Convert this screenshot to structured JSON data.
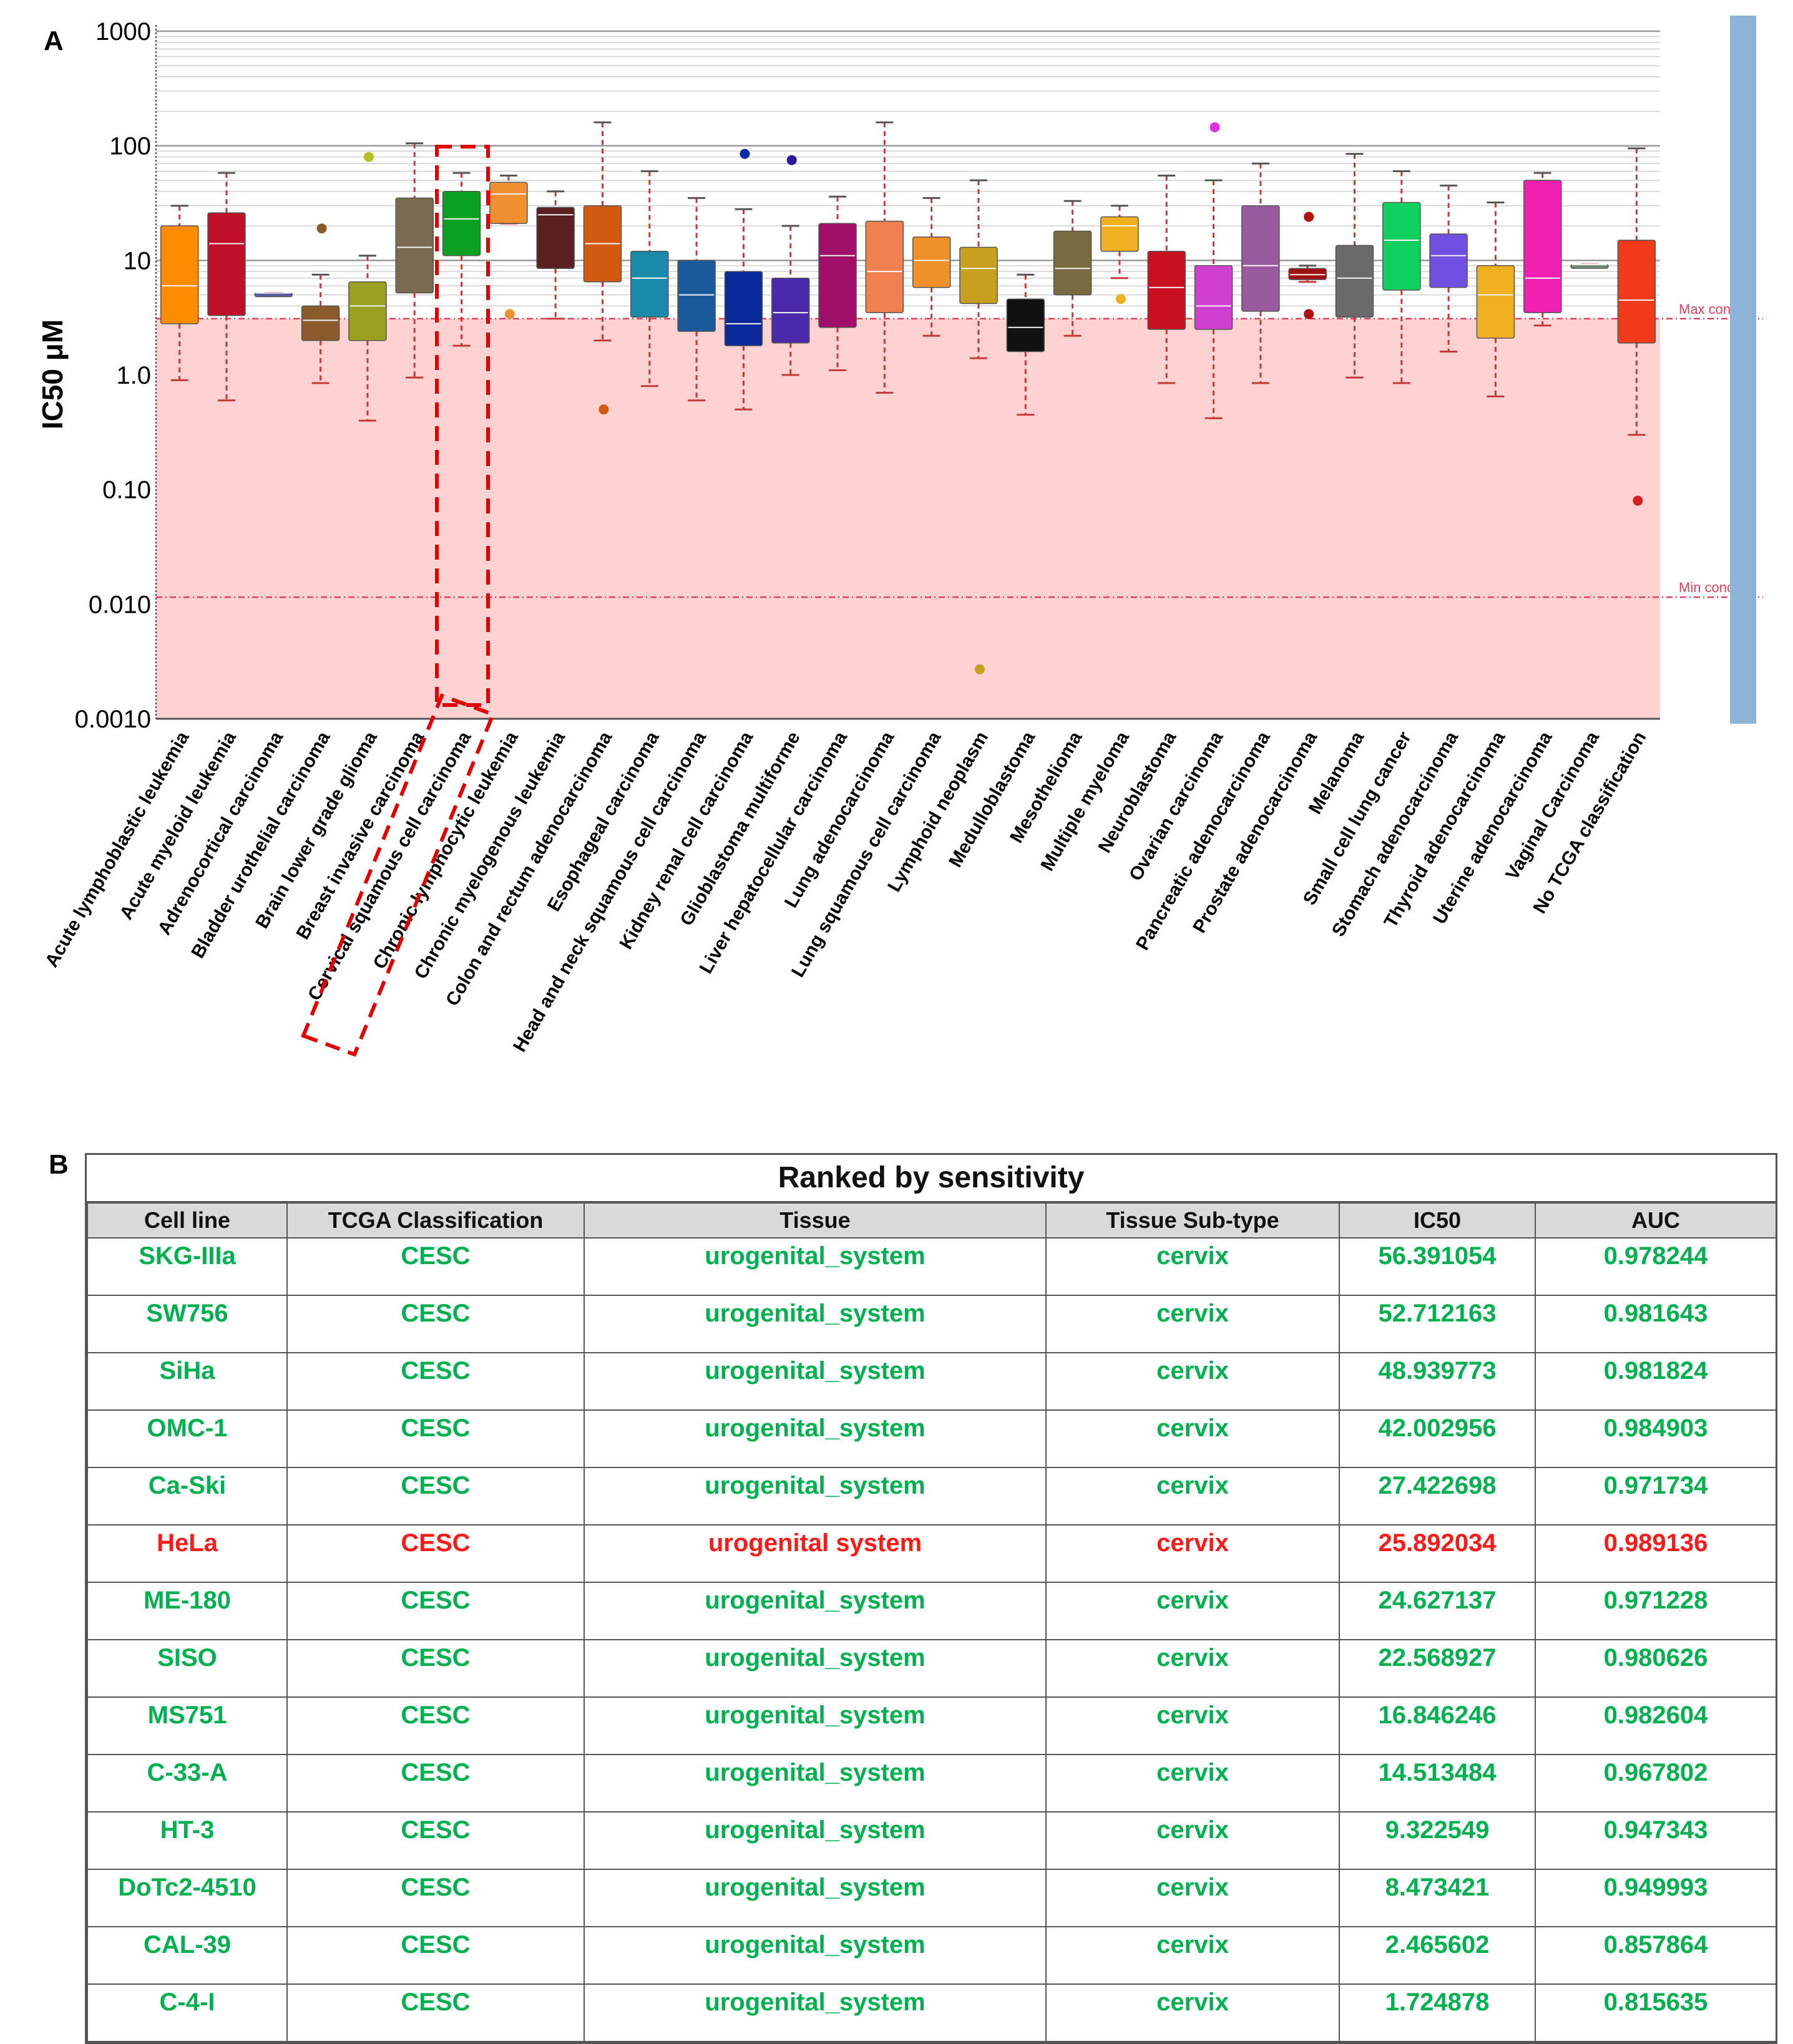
{
  "panel_a_label": "A",
  "panel_b_label": "B",
  "chart_data": {
    "type": "box",
    "title": "",
    "xlabel": "",
    "ylabel": "IC50 μM",
    "yscale": "log",
    "ylim": [
      0.001,
      1000
    ],
    "yticks": [
      {
        "value": 1000,
        "label": "1000"
      },
      {
        "value": 100,
        "label": "100"
      },
      {
        "value": 10,
        "label": "10"
      },
      {
        "value": 1,
        "label": "1.0"
      },
      {
        "value": 0.1,
        "label": "0.10"
      },
      {
        "value": 0.01,
        "label": "0.010"
      },
      {
        "value": 0.001,
        "label": "0.0010"
      }
    ],
    "max_conc": {
      "value": 3.1,
      "label": "Max conc"
    },
    "min_conc": {
      "value": 0.0115,
      "label": "Min conc"
    },
    "highlighted_category": "Cervical squamous cell carcinoma",
    "categories": [
      {
        "name": "Acute lymphoblastic leukemia",
        "color": "#ff8c00",
        "min": 0.9,
        "q1": 2.8,
        "median": 6.0,
        "q3": 20,
        "max": 30,
        "outliers": []
      },
      {
        "name": "Acute myeloid leukemia",
        "color": "#c0102a",
        "min": 0.6,
        "q1": 3.3,
        "median": 14,
        "q3": 26,
        "max": 58,
        "outliers": []
      },
      {
        "name": "Adrenocortical carcinoma",
        "color": "#5a5aa0",
        "min": 5.2,
        "q1": 5.2,
        "median": 5.2,
        "q3": 5.2,
        "max": 5.2,
        "outliers": []
      },
      {
        "name": "Bladder urothelial carcinoma",
        "color": "#8b5a2b",
        "min": 0.85,
        "q1": 2.0,
        "median": 3.0,
        "q3": 4.0,
        "max": 7.5,
        "outliers": [
          {
            "value": 19,
            "color": "#8b5a2b"
          }
        ]
      },
      {
        "name": "Brain lower grade glioma",
        "color": "#9aa020",
        "min": 0.4,
        "q1": 2.0,
        "median": 4.0,
        "q3": 6.5,
        "max": 11,
        "outliers": [
          {
            "value": 80,
            "color": "#b8c020"
          }
        ]
      },
      {
        "name": "Breast invasive carcinoma",
        "color": "#7a6a50",
        "min": 0.95,
        "q1": 5.2,
        "median": 13,
        "q3": 35,
        "max": 105,
        "outliers": []
      },
      {
        "name": "Cervical squamous cell carcinoma",
        "color": "#0aa020",
        "min": 1.8,
        "q1": 11,
        "median": 23,
        "q3": 40,
        "max": 58,
        "outliers": []
      },
      {
        "name": "Chronic lymphocytic leukemia",
        "color": "#f09030",
        "min": 21,
        "q1": 21,
        "median": 38,
        "q3": 48,
        "max": 55,
        "outliers": [
          {
            "value": 3.4,
            "color": "#f09030"
          }
        ]
      },
      {
        "name": "Chronic myelogenous leukemia",
        "color": "#5a2020",
        "min": 3.1,
        "q1": 8.5,
        "median": 25,
        "q3": 29,
        "max": 40,
        "outliers": []
      },
      {
        "name": "Colon and rectum adenocarcinoma",
        "color": "#d25a10",
        "min": 2.0,
        "q1": 6.5,
        "median": 14,
        "q3": 30,
        "max": 160,
        "outliers": [
          {
            "value": 0.5,
            "color": "#d25a10"
          }
        ]
      },
      {
        "name": "Esophageal carcinoma",
        "color": "#1a8aaa",
        "min": 0.8,
        "q1": 3.2,
        "median": 7.0,
        "q3": 12,
        "max": 60,
        "outliers": []
      },
      {
        "name": "Head and neck squamous cell carcinoma",
        "color": "#1a5a9a",
        "min": 0.6,
        "q1": 2.4,
        "median": 5.0,
        "q3": 10,
        "max": 35,
        "outliers": []
      },
      {
        "name": "Kidney renal cell carcinoma",
        "color": "#0a2a9a",
        "min": 0.5,
        "q1": 1.8,
        "median": 2.8,
        "q3": 8.0,
        "max": 28,
        "outliers": [
          {
            "value": 85,
            "color": "#0a2aaa"
          }
        ]
      },
      {
        "name": "Glioblastoma multiforme",
        "color": "#4a2aaa",
        "min": 1.0,
        "q1": 1.9,
        "median": 3.5,
        "q3": 7.0,
        "max": 20,
        "outliers": [
          {
            "value": 75,
            "color": "#2a1a9a"
          }
        ]
      },
      {
        "name": "Liver hepatocellular carcinoma",
        "color": "#a0106a",
        "min": 1.1,
        "q1": 2.6,
        "median": 11,
        "q3": 21,
        "max": 36,
        "outliers": []
      },
      {
        "name": "Lung adenocarcinoma",
        "color": "#f08050",
        "min": 0.7,
        "q1": 3.5,
        "median": 8.0,
        "q3": 22,
        "max": 160,
        "outliers": []
      },
      {
        "name": "Lung squamous cell carcinoma",
        "color": "#f0902a",
        "min": 2.2,
        "q1": 5.8,
        "median": 10,
        "q3": 16,
        "max": 35,
        "outliers": []
      },
      {
        "name": "Lymphoid neoplasm",
        "color": "#c8a020",
        "min": 1.4,
        "q1": 4.2,
        "median": 8.5,
        "q3": 13,
        "max": 50,
        "outliers": [
          {
            "value": 0.0027,
            "color": "#c8a020"
          }
        ]
      },
      {
        "name": "Medulloblastoma",
        "color": "#111111",
        "min": 0.45,
        "q1": 1.6,
        "median": 2.6,
        "q3": 4.6,
        "max": 7.5,
        "outliers": []
      },
      {
        "name": "Mesothelioma",
        "color": "#7a6a40",
        "min": 2.2,
        "q1": 5.0,
        "median": 8.5,
        "q3": 18,
        "max": 33,
        "outliers": []
      },
      {
        "name": "Multiple myeloma",
        "color": "#f0b020",
        "min": 7.0,
        "q1": 12,
        "median": 20,
        "q3": 24,
        "max": 30,
        "outliers": [
          {
            "value": 4.6,
            "color": "#f0b020"
          }
        ]
      },
      {
        "name": "Neuroblastoma",
        "color": "#c81020",
        "min": 0.85,
        "q1": 2.5,
        "median": 5.8,
        "q3": 12,
        "max": 55,
        "outliers": []
      },
      {
        "name": "Ovarian carcinoma",
        "color": "#d040d0",
        "min": 0.42,
        "q1": 2.5,
        "median": 4.0,
        "q3": 9.0,
        "max": 50,
        "outliers": [
          {
            "value": 145,
            "color": "#e030e0"
          }
        ]
      },
      {
        "name": "Pancreatic adenocarcinoma",
        "color": "#9a5aa0",
        "min": 0.85,
        "q1": 3.6,
        "median": 9.0,
        "q3": 30,
        "max": 70,
        "outliers": []
      },
      {
        "name": "Prostate adenocarcinoma",
        "color": "#a01010",
        "min": 6.5,
        "q1": 6.8,
        "median": 7.5,
        "q3": 8.5,
        "max": 9.0,
        "outliers": [
          {
            "value": 24,
            "color": "#b01010"
          },
          {
            "value": 3.4,
            "color": "#b01010"
          }
        ]
      },
      {
        "name": "Melanoma",
        "color": "#6a6a6a",
        "min": 0.95,
        "q1": 3.2,
        "median": 7.0,
        "q3": 13.5,
        "max": 85,
        "outliers": []
      },
      {
        "name": "Small cell lung cancer",
        "color": "#10d060",
        "min": 0.85,
        "q1": 5.5,
        "median": 15,
        "q3": 32,
        "max": 60,
        "outliers": []
      },
      {
        "name": "Stomach adenocarcinoma",
        "color": "#7050e0",
        "min": 1.6,
        "q1": 5.8,
        "median": 11,
        "q3": 17,
        "max": 45,
        "outliers": []
      },
      {
        "name": "Thyroid adenocarcinoma",
        "color": "#f0b020",
        "min": 0.65,
        "q1": 2.1,
        "median": 5.0,
        "q3": 9.0,
        "max": 32,
        "outliers": []
      },
      {
        "name": "Uterine adenocarcinoma",
        "color": "#f020b0",
        "min": 2.7,
        "q1": 3.5,
        "median": 7.0,
        "q3": 50,
        "max": 58,
        "outliers": []
      },
      {
        "name": "Vaginal Carcinoma",
        "color": "#7a8a7a",
        "min": 9.2,
        "q1": 9.2,
        "median": 9.2,
        "q3": 9.2,
        "max": 9.2,
        "outliers": []
      },
      {
        "name": "No TCGA classification",
        "color": "#f03a1a",
        "min": 0.3,
        "q1": 1.9,
        "median": 4.5,
        "q3": 15,
        "max": 95,
        "outliers": [
          {
            "value": 0.08,
            "color": "#d02020"
          }
        ]
      }
    ]
  },
  "table": {
    "title": "Ranked by sensitivity",
    "headers": [
      "Cell line",
      "TCGA Classification",
      "Tissue",
      "Tissue Sub-type",
      "IC50",
      "AUC"
    ],
    "rows": [
      {
        "cells": [
          "SKG-IIIa",
          "CESC",
          "urogenital_system",
          "cervix",
          "56.391054",
          "0.978244"
        ],
        "highlight": false
      },
      {
        "cells": [
          "SW756",
          "CESC",
          "urogenital_system",
          "cervix",
          "52.712163",
          "0.981643"
        ],
        "highlight": false
      },
      {
        "cells": [
          "SiHa",
          "CESC",
          "urogenital_system",
          "cervix",
          "48.939773",
          "0.981824"
        ],
        "highlight": false
      },
      {
        "cells": [
          "OMC-1",
          "CESC",
          "urogenital_system",
          "cervix",
          "42.002956",
          "0.984903"
        ],
        "highlight": false
      },
      {
        "cells": [
          "Ca-Ski",
          "CESC",
          "urogenital_system",
          "cervix",
          "27.422698",
          "0.971734"
        ],
        "highlight": false
      },
      {
        "cells": [
          "HeLa",
          "CESC",
          "urogenital system",
          "cervix",
          "25.892034",
          "0.989136"
        ],
        "highlight": true
      },
      {
        "cells": [
          "ME-180",
          "CESC",
          "urogenital_system",
          "cervix",
          "24.627137",
          "0.971228"
        ],
        "highlight": false
      },
      {
        "cells": [
          "SISO",
          "CESC",
          "urogenital_system",
          "cervix",
          "22.568927",
          "0.980626"
        ],
        "highlight": false
      },
      {
        "cells": [
          "MS751",
          "CESC",
          "urogenital_system",
          "cervix",
          "16.846246",
          "0.982604"
        ],
        "highlight": false
      },
      {
        "cells": [
          "C-33-A",
          "CESC",
          "urogenital_system",
          "cervix",
          "14.513484",
          "0.967802"
        ],
        "highlight": false
      },
      {
        "cells": [
          "HT-3",
          "CESC",
          "urogenital_system",
          "cervix",
          "9.322549",
          "0.947343"
        ],
        "highlight": false
      },
      {
        "cells": [
          "DoTc2-4510",
          "CESC",
          "urogenital_system",
          "cervix",
          "8.473421",
          "0.949993"
        ],
        "highlight": false
      },
      {
        "cells": [
          "CAL-39",
          "CESC",
          "urogenital_system",
          "cervix",
          "2.465602",
          "0.857864"
        ],
        "highlight": false
      },
      {
        "cells": [
          "C-4-I",
          "CESC",
          "urogenital_system",
          "cervix",
          "1.724878",
          "0.815635"
        ],
        "highlight": false
      }
    ]
  }
}
